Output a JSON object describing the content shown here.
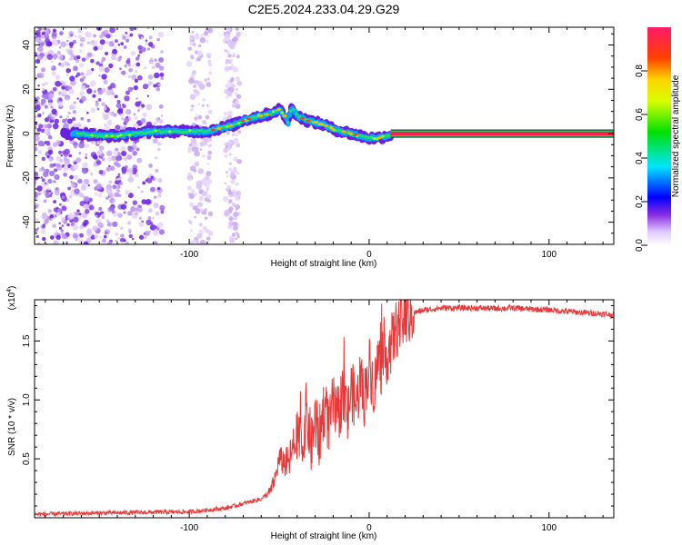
{
  "figure_title": "C2E5.2024.233.04.29.G29",
  "chart_data": [
    {
      "type": "heatmap",
      "xlabel": "Height of straight line (km)",
      "ylabel": "Frequency (Hz)",
      "xlim": [
        -186,
        136
      ],
      "ylim": [
        -50,
        48
      ],
      "xticks": [
        -100,
        0,
        100
      ],
      "xtick_labels": [
        "-100",
        "0",
        "100"
      ],
      "yticks": [
        -40,
        -20,
        0,
        20,
        40
      ],
      "ytick_labels": [
        "-40",
        "-20",
        "0",
        "20",
        "40"
      ],
      "ridge": {
        "x": [
          -170,
          -160,
          -150,
          -140,
          -130,
          -120,
          -110,
          -100,
          -90,
          -80,
          -75,
          -70,
          -65,
          -60,
          -55,
          -50,
          -47,
          -45,
          -43,
          -40,
          -35,
          -30,
          -25,
          -20,
          -15,
          -10,
          -5,
          0,
          5,
          10,
          15,
          60,
          136
        ],
        "y": [
          0,
          0,
          -1,
          -1,
          0,
          1,
          1,
          1,
          1,
          3,
          4,
          6,
          7,
          8,
          9,
          11,
          8,
          5,
          12,
          8,
          6,
          5,
          4,
          2,
          1,
          0,
          -1,
          -2,
          -2,
          -1,
          0,
          0,
          0
        ],
        "stable_from_x": 12
      },
      "noise_bands": [
        [
          -186,
          -115
        ],
        [
          -100,
          -88
        ],
        [
          -80,
          -72
        ]
      ],
      "colorbar": {
        "label": "Normalized spectral amplitude",
        "range": [
          0,
          1
        ],
        "ticks": [
          0.0,
          0.2,
          0.4,
          0.6,
          0.8
        ],
        "tick_labels": [
          "0.0",
          "0.2",
          "0.4",
          "0.6",
          "0.8"
        ]
      },
      "grid": false
    },
    {
      "type": "line",
      "xlabel": "Height of straight line (km)",
      "ylabel": "SNR (10 * v/v)",
      "y_multiplier": "(x10",
      "y_multiplier_exp": "4",
      "y_multiplier_close": ")",
      "xlim": [
        -186,
        136
      ],
      "ylim": [
        0,
        18500
      ],
      "xticks": [
        -100,
        0,
        100
      ],
      "xtick_labels": [
        "-100",
        "0",
        "100"
      ],
      "yticks": [
        5000,
        10000,
        15000
      ],
      "ytick_labels": [
        "0.5",
        "1.0",
        "1.5"
      ],
      "series_color": "#e8393a",
      "series": [
        {
          "x": [
            -186,
            -150,
            -100,
            -80,
            -70,
            -60,
            -55,
            -52,
            -50,
            -45,
            -40,
            -37,
            -35,
            -32,
            -30,
            -28,
            -25,
            -22,
            -20,
            -18,
            -15,
            -12,
            -10,
            -7,
            -5,
            -3,
            0,
            3,
            5,
            8,
            10,
            13,
            15,
            18,
            20,
            23,
            25,
            30,
            35,
            40,
            50,
            60,
            70,
            80,
            90,
            100,
            110,
            120,
            130,
            136
          ],
          "y": [
            300,
            400,
            500,
            800,
            1200,
            1600,
            2200,
            3500,
            5000,
            4500,
            7000,
            6000,
            9000,
            6000,
            8500,
            6500,
            9500,
            7500,
            10000,
            8000,
            10500,
            8500,
            11000,
            9500,
            12000,
            10000,
            13000,
            11000,
            13500,
            12500,
            14000,
            15000,
            16000,
            16500,
            17000,
            17200,
            17400,
            17600,
            17700,
            17800,
            17800,
            17800,
            17750,
            17800,
            17700,
            17650,
            17500,
            17400,
            17300,
            17200
          ]
        }
      ],
      "grid": false
    }
  ]
}
